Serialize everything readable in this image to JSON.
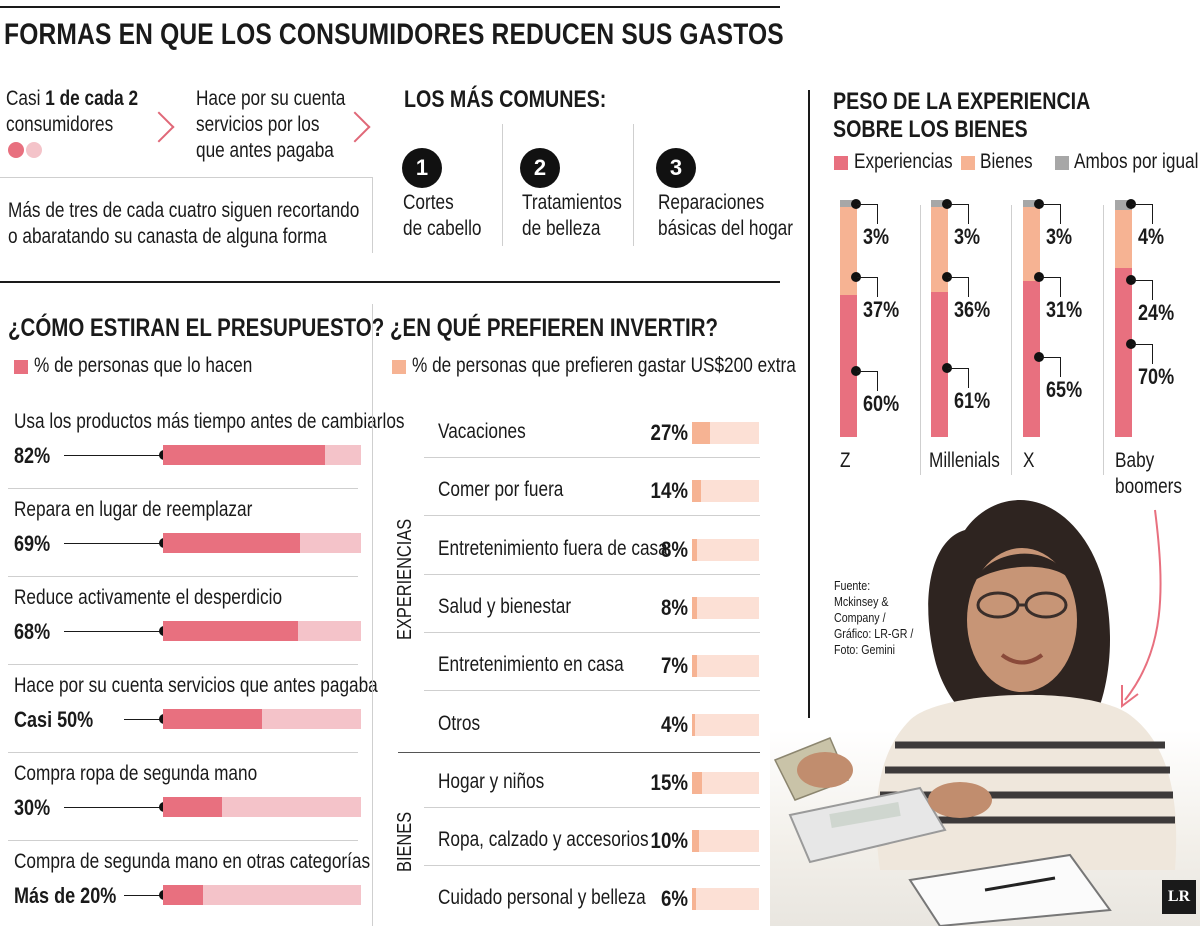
{
  "title": "FORMAS EN QUE LOS CONSUMIDORES REDUCEN SUS GASTOS",
  "intro": {
    "stat_prefix": "Casi ",
    "stat_bold": "1 de cada 2",
    "stat_suffix": "consumidores",
    "action_line1": "Hace por su cuenta",
    "action_line2": "servicios por los",
    "action_line3": "que antes pagaba",
    "note_line1": "Más de tres de cada cuatro siguen recortando",
    "note_line2": "o abaratando su canasta de alguna forma"
  },
  "common": {
    "heading": "LOS MÁS COMUNES:",
    "items": [
      {
        "num": "1",
        "line1": "Cortes",
        "line2": "de cabello"
      },
      {
        "num": "2",
        "line1": "Tratamientos",
        "line2": "de belleza"
      },
      {
        "num": "3",
        "line1": "Reparaciones",
        "line2": "básicas del hogar"
      }
    ]
  },
  "colors": {
    "experiencias": "#e8707f",
    "bienes": "#f6b393",
    "ambos": "#a7a7a7",
    "budget_bar": "#e8707f",
    "budget_bg": "#f4c3c9",
    "invest_bar": "#f6b393",
    "invest_bg": "#fce0d5"
  },
  "chart_data": [
    {
      "type": "bar",
      "title": "¿CÓMO ESTIRAN EL PRESUPUESTO?",
      "legend": "% de personas que lo hacen",
      "rows": [
        {
          "label": "Usa los productos más tiempo antes de cambiarlos",
          "value_text": "82%",
          "value": 82
        },
        {
          "label": "Repara en lugar de reemplazar",
          "value_text": "69%",
          "value": 69
        },
        {
          "label": "Reduce activamente el desperdicio",
          "value_text": "68%",
          "value": 68
        },
        {
          "label": "Hace por su cuenta servicios que antes pagaba",
          "value_text": "Casi 50%",
          "value": 50
        },
        {
          "label": "Compra ropa de segunda mano",
          "value_text": "30%",
          "value": 30
        },
        {
          "label": "Compra de segunda mano en otras categorías",
          "value_text": "Más de 20%",
          "value": 20
        }
      ]
    },
    {
      "type": "bar",
      "title": "¿EN QUÉ PREFIEREN INVERTIR?",
      "legend": "% de personas que prefieren gastar US$200 extra",
      "groups": [
        {
          "name": "EXPERIENCIAS",
          "rows": [
            {
              "label": "Vacaciones",
              "value": 27,
              "value_text": "27%"
            },
            {
              "label": "Comer por fuera",
              "value": 14,
              "value_text": "14%"
            },
            {
              "label": "Entretenimiento fuera de casa",
              "value": 8,
              "value_text": "8%"
            },
            {
              "label": "Salud y bienestar",
              "value": 8,
              "value_text": "8%"
            },
            {
              "label": "Entretenimiento en casa",
              "value": 7,
              "value_text": "7%"
            },
            {
              "label": "Otros",
              "value": 4,
              "value_text": "4%"
            }
          ]
        },
        {
          "name": "BIENES",
          "rows": [
            {
              "label": "Hogar y niños",
              "value": 15,
              "value_text": "15%"
            },
            {
              "label": "Ropa, calzado y accesorios",
              "value": 10,
              "value_text": "10%"
            },
            {
              "label": "Cuidado personal y belleza",
              "value": 6,
              "value_text": "6%"
            }
          ]
        }
      ]
    },
    {
      "type": "bar",
      "title_line1": "PESO DE LA EXPERIENCIA",
      "title_line2": "SOBRE LOS BIENES",
      "series_names": [
        "Experiencias",
        "Bienes",
        "Ambos por igual"
      ],
      "categories": [
        {
          "line1": "Z",
          "line2": "",
          "experiencias": 60,
          "bienes": 37,
          "ambos": 3
        },
        {
          "line1": "Millenials",
          "line2": "",
          "experiencias": 61,
          "bienes": 36,
          "ambos": 3
        },
        {
          "line1": "X",
          "line2": "",
          "experiencias": 65,
          "bienes": 31,
          "ambos": 3
        },
        {
          "line1": "Baby",
          "line2": "boomers",
          "experiencias": 70,
          "bienes": 24,
          "ambos": 4
        }
      ]
    }
  ],
  "source": {
    "line1": "Fuente:",
    "line2": "Mckinsey &",
    "line3": "Company /",
    "line4": "Gráfico: LR-GR /",
    "line5": "Foto: Gemini"
  },
  "logo": "LR"
}
